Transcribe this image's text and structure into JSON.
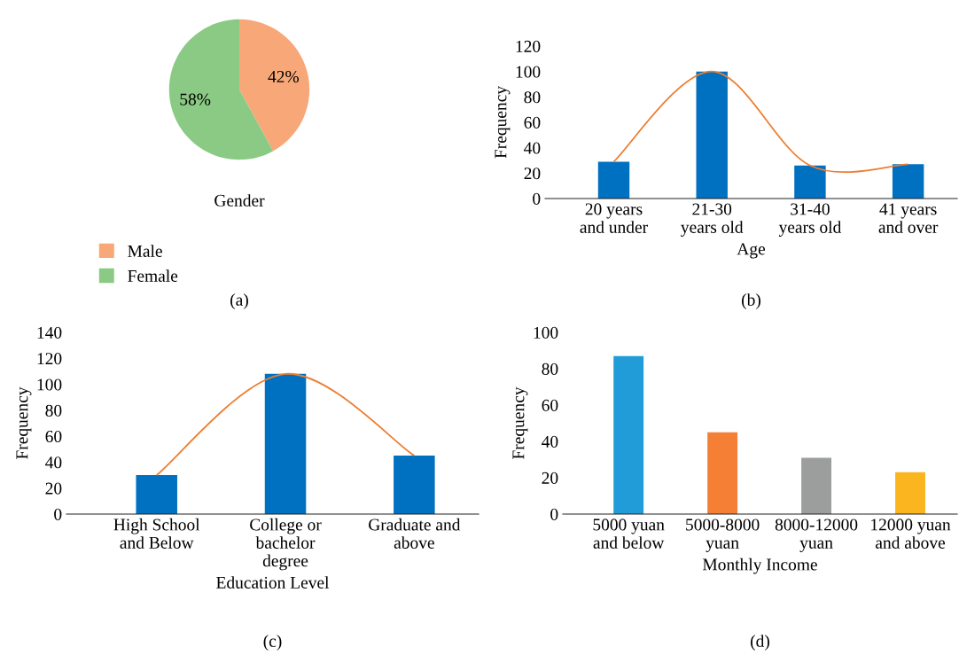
{
  "chart_data": [
    {
      "type": "pie",
      "xlabel": "Gender",
      "categories": [
        "Male",
        "Female"
      ],
      "values": [
        42,
        58
      ],
      "colors": [
        "#f8a878",
        "#8bca84"
      ],
      "value_labels": [
        "42%",
        "58%"
      ],
      "legend": "bottom",
      "annotations": [
        "(a)"
      ]
    },
    {
      "type": "bar",
      "xlabel": "Age",
      "ylabel": "Frequency",
      "categories": [
        "20 years\nand under",
        "21-30\nyears old",
        "31-40\nyears old",
        "41 years\nand over"
      ],
      "series": [
        {
          "type": "bar",
          "color": "#0070c0",
          "values": [
            29,
            100,
            26,
            27
          ]
        },
        {
          "type": "line",
          "color": "#ed7d31",
          "values": [
            29,
            100,
            26,
            27
          ]
        }
      ],
      "ylim": [
        0,
        120
      ],
      "yticks": [
        0,
        20,
        40,
        60,
        80,
        100,
        120
      ],
      "annotations": [
        "(b)"
      ]
    },
    {
      "type": "bar",
      "xlabel": "Education Level",
      "ylabel": "Frequency",
      "categories": [
        "High School\nand Below",
        "College or\nbachelor\ndegree",
        "Graduate and\nabove"
      ],
      "series": [
        {
          "type": "bar",
          "color": "#0070c0",
          "values": [
            30,
            108,
            45
          ]
        },
        {
          "type": "line",
          "color": "#ed7d31",
          "values": [
            30,
            108,
            45
          ]
        }
      ],
      "ylim": [
        0,
        140
      ],
      "yticks": [
        0,
        20,
        40,
        60,
        80,
        100,
        120,
        140
      ],
      "annotations": [
        "(c)"
      ]
    },
    {
      "type": "bar",
      "xlabel": "Monthly Income",
      "ylabel": "Frequency",
      "categories": [
        "5000 yuan\nand below",
        "5000-8000\nyuan",
        "8000-12000\nyuan",
        "12000 yuan\nand above"
      ],
      "series": [
        {
          "type": "bar",
          "colors": [
            "#219cd8",
            "#f47f35",
            "#9c9e9e",
            "#fbb51f"
          ],
          "values": [
            87,
            45,
            31,
            23
          ]
        }
      ],
      "ylim": [
        0,
        100
      ],
      "yticks": [
        0,
        20,
        40,
        60,
        80,
        100
      ],
      "annotations": [
        "(d)"
      ]
    }
  ]
}
